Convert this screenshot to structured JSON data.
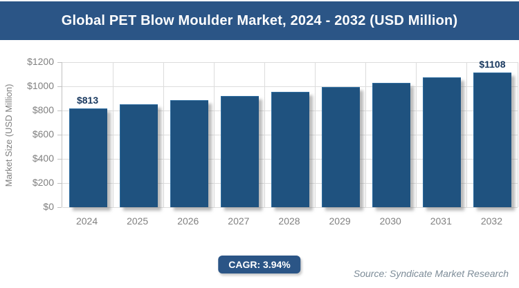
{
  "header": {
    "title": "Global PET Blow Moulder Market, 2024 - 2032 (USD Million)"
  },
  "chart_data": {
    "type": "bar",
    "title": "Global PET Blow Moulder Market, 2024 - 2032 (USD Million)",
    "categories": [
      "2024",
      "2025",
      "2026",
      "2027",
      "2028",
      "2029",
      "2030",
      "2031",
      "2032"
    ],
    "values": [
      813,
      845,
      878,
      913,
      949,
      986,
      1025,
      1066,
      1108
    ],
    "bar_labels": [
      "$813",
      "",
      "",
      "",
      "",
      "",
      "",
      "",
      "$1108"
    ],
    "xlabel": "",
    "ylabel": "Market Size (USD Million)",
    "ylim": [
      0,
      1200
    ],
    "ytick_step": 200,
    "ytick_labels": [
      "$0",
      "$200",
      "$400",
      "$600",
      "$800",
      "$1000",
      "$1200"
    ],
    "grid": "on",
    "legend": "none"
  },
  "footer": {
    "cagr_label": "CAGR: 3.94%",
    "source": "Source: Syndicate Market Research"
  },
  "colors": {
    "header_bg": "#2B5586",
    "bar_fill": "#1F527F",
    "bar_edge": "#2E6DA0",
    "value_text": "#17375E",
    "tick_text": "#808080",
    "gridline": "#DCDCDC",
    "axis_line": "#C0C0C0",
    "badge_bg": "#2B5586",
    "source_text": "#7D8C98"
  }
}
